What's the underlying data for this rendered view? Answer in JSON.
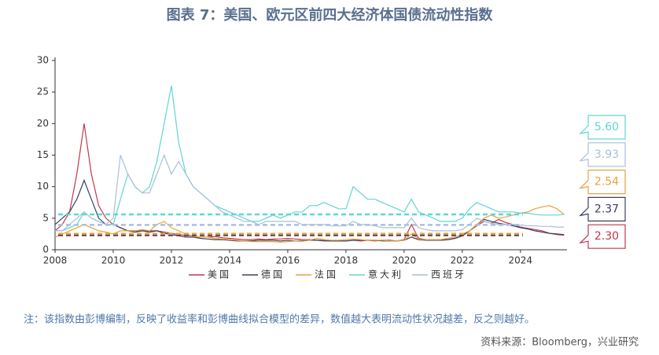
{
  "chart_data": {
    "type": "line",
    "title": "图表 7：美国、欧元区前四大经济体国债流动性指数",
    "note": "注：该指数由彭博编制，反映了收益率和彭博曲线拟合模型的差异，数值越大表明流动性状况越差，反之则越好。",
    "source": "资料来源：Bloomberg，兴业研究",
    "xlim": [
      2008,
      2025.6
    ],
    "xticks": [
      2008,
      2010,
      2012,
      2014,
      2016,
      2018,
      2020,
      2022,
      2024
    ],
    "ylim": [
      0,
      30
    ],
    "yticks": [
      0,
      5,
      10,
      15,
      20,
      25,
      30
    ],
    "x": [
      2008,
      2008.25,
      2008.5,
      2008.75,
      2009,
      2009.25,
      2009.5,
      2009.75,
      2010,
      2010.25,
      2010.5,
      2010.75,
      2011,
      2011.25,
      2011.5,
      2011.75,
      2012,
      2012.25,
      2012.5,
      2012.75,
      2013,
      2013.25,
      2013.5,
      2013.75,
      2014,
      2014.25,
      2014.5,
      2014.75,
      2015,
      2015.25,
      2015.5,
      2015.75,
      2016,
      2016.25,
      2016.5,
      2016.75,
      2017,
      2017.25,
      2017.5,
      2017.75,
      2018,
      2018.25,
      2018.5,
      2018.75,
      2019,
      2019.25,
      2019.5,
      2019.75,
      2020,
      2020.25,
      2020.5,
      2020.75,
      2021,
      2021.25,
      2021.5,
      2021.75,
      2022,
      2022.25,
      2022.5,
      2022.75,
      2023,
      2023.25,
      2023.5,
      2023.75,
      2024,
      2024.25,
      2024.5,
      2024.75,
      2025,
      2025.25,
      2025.5
    ],
    "series": [
      {
        "name": "美国",
        "color": "#c0394a",
        "ref_value": 2.3,
        "ref_label": "2.30",
        "values": [
          3,
          4,
          6,
          12,
          20,
          12,
          7,
          5,
          4,
          3.5,
          3,
          3,
          3,
          3,
          3,
          2.8,
          2.6,
          2.4,
          2.3,
          2.2,
          2,
          2,
          2.1,
          1.9,
          1.8,
          1.7,
          1.6,
          1.6,
          1.7,
          1.6,
          1.7,
          1.7,
          1.8,
          1.7,
          1.6,
          1.6,
          1.5,
          1.5,
          1.4,
          1.4,
          1.4,
          1.5,
          1.4,
          1.5,
          1.4,
          1.5,
          1.5,
          1.4,
          1.6,
          4,
          1.8,
          1.6,
          1.5,
          1.5,
          1.6,
          1.8,
          2.2,
          3,
          3.8,
          4.5,
          4.2,
          4.8,
          4.3,
          4,
          3.6,
          3.4,
          3.2,
          3,
          2.6,
          2.4,
          2.3
        ]
      },
      {
        "name": "德国",
        "color": "#3b3f63",
        "ref_value": 2.37,
        "ref_label": "2.37",
        "values": [
          4,
          5,
          6,
          8,
          11,
          8,
          5,
          4,
          4,
          3.5,
          3,
          2.8,
          3,
          2.8,
          3,
          2.6,
          2.4,
          2.2,
          2,
          2,
          1.8,
          1.7,
          1.6,
          1.6,
          1.5,
          1.4,
          1.4,
          1.4,
          1.5,
          1.5,
          1.5,
          1.4,
          1.5,
          1.4,
          1.4,
          1.5,
          1.5,
          1.4,
          1.4,
          1.4,
          1.4,
          1.5,
          1.5,
          1.5,
          1.5,
          1.4,
          1.4,
          1.4,
          1.5,
          2,
          1.6,
          1.5,
          1.5,
          1.5,
          1.6,
          1.8,
          2.2,
          3,
          4,
          4.8,
          4.5,
          4.2,
          4,
          3.8,
          3.5,
          3.3,
          3,
          2.8,
          2.6,
          2.5,
          2.4
        ]
      },
      {
        "name": "法国",
        "color": "#e8a33a",
        "ref_value": 2.54,
        "ref_label": "2.54",
        "values": [
          2,
          2.5,
          3,
          3.5,
          4,
          3.5,
          3,
          2.8,
          2.5,
          3,
          3,
          3,
          3.2,
          3,
          4,
          4.5,
          3.5,
          3,
          2.5,
          2.2,
          2,
          2,
          1.8,
          1.7,
          1.6,
          1.5,
          1.4,
          1.3,
          1.3,
          1.3,
          1.3,
          1.2,
          1.3,
          1.4,
          1.5,
          1.5,
          1.8,
          1.6,
          1.5,
          1.5,
          1.6,
          1.7,
          1.6,
          1.5,
          1.5,
          1.5,
          1.4,
          1.4,
          1.5,
          2.5,
          1.7,
          1.6,
          1.6,
          1.6,
          1.8,
          2,
          2.5,
          3,
          4,
          5,
          5.5,
          5,
          5.2,
          5.5,
          5.8,
          6,
          6.5,
          6.8,
          7,
          6.5,
          5.6
        ]
      },
      {
        "name": "意大利",
        "color": "#5ed6d6",
        "ref_value": 5.6,
        "ref_label": "5.60",
        "values": [
          3,
          3,
          3.5,
          4,
          6,
          5,
          4.5,
          4,
          4,
          8,
          12,
          10,
          9,
          10,
          14,
          20,
          26,
          17,
          12,
          10,
          9,
          8,
          7,
          6.5,
          6,
          5.5,
          5,
          4.5,
          4.5,
          5,
          5.5,
          5,
          5.5,
          6,
          6,
          7,
          7,
          7.5,
          7,
          6.5,
          6.5,
          10,
          9,
          8,
          8,
          7.5,
          7,
          6.5,
          6,
          8,
          6,
          5.5,
          5,
          4.5,
          4.5,
          4.5,
          5,
          6.5,
          7.5,
          7,
          6.5,
          6,
          6,
          6,
          5.8,
          5.8,
          5.6,
          5.5,
          5.5,
          5.5,
          5.6
        ]
      },
      {
        "name": "西班牙",
        "color": "#a9bfdc",
        "ref_value": 3.93,
        "ref_label": "3.93",
        "values": [
          3,
          3,
          4,
          5,
          6,
          5,
          4.5,
          4,
          5,
          15,
          12,
          10,
          9,
          9,
          12,
          15,
          12,
          14,
          12,
          10,
          9,
          8,
          7,
          6,
          5.5,
          5,
          4.5,
          4.5,
          4,
          4.5,
          4.5,
          4.5,
          4.5,
          4.5,
          4,
          4,
          4,
          4,
          3.8,
          3.8,
          3.8,
          4.5,
          4,
          4,
          3.8,
          3.5,
          3.5,
          3.5,
          3.5,
          5,
          3.5,
          3.2,
          3,
          3,
          3,
          3,
          3.2,
          4,
          5,
          4.5,
          4.2,
          4,
          4,
          4,
          3.9,
          3.8,
          3.8,
          3.7,
          3.7,
          3.6,
          3.6
        ]
      }
    ]
  }
}
